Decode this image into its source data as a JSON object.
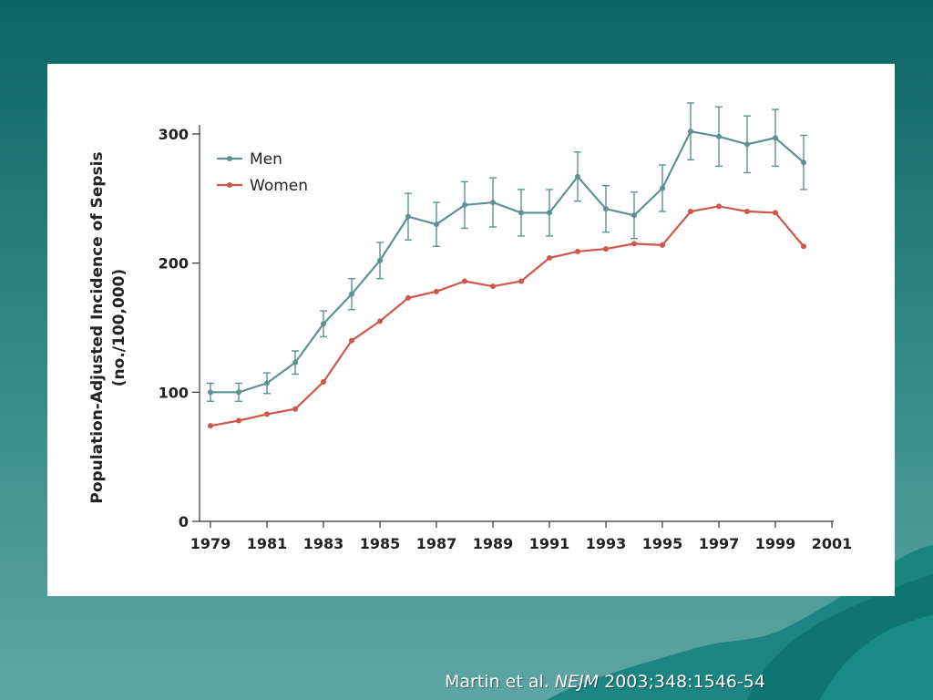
{
  "citation": {
    "authors": "Martin et al.",
    "journal": "NEJM",
    "details": "2003;348:1546-54"
  },
  "chart_data": {
    "type": "line",
    "title": "",
    "xlabel": "",
    "ylabel": [
      "Population-Adjusted Incidence of Sepsis",
      "(no./100,000)"
    ],
    "xlim": [
      1979,
      2001
    ],
    "ylim": [
      0,
      300
    ],
    "x_ticks": [
      "1979",
      "1981",
      "1983",
      "1985",
      "1987",
      "1989",
      "1991",
      "1993",
      "1995",
      "1997",
      "1999",
      "2001"
    ],
    "y_ticks": [
      "0",
      "100",
      "200",
      "300"
    ],
    "grid": false,
    "legend_position": "top-left",
    "x": [
      1979,
      1980,
      1981,
      1982,
      1983,
      1984,
      1985,
      1986,
      1987,
      1988,
      1989,
      1990,
      1991,
      1992,
      1993,
      1994,
      1995,
      1996,
      1997,
      1998,
      1999,
      2000
    ],
    "series": [
      {
        "name": "Men",
        "color": "#5e9290",
        "values": [
          100,
          100,
          107,
          123,
          153,
          176,
          202,
          236,
          230,
          245,
          247,
          239,
          239,
          267,
          242,
          237,
          258,
          302,
          298,
          292,
          297,
          278
        ],
        "error": [
          7,
          7,
          8,
          9,
          10,
          12,
          14,
          18,
          17,
          18,
          19,
          18,
          18,
          19,
          18,
          18,
          18,
          22,
          23,
          22,
          22,
          21
        ]
      },
      {
        "name": "Women",
        "color": "#d0554a",
        "values": [
          74,
          78,
          83,
          87,
          108,
          140,
          155,
          173,
          178,
          186,
          182,
          186,
          204,
          209,
          211,
          215,
          214,
          240,
          244,
          240,
          239,
          213
        ]
      }
    ]
  }
}
